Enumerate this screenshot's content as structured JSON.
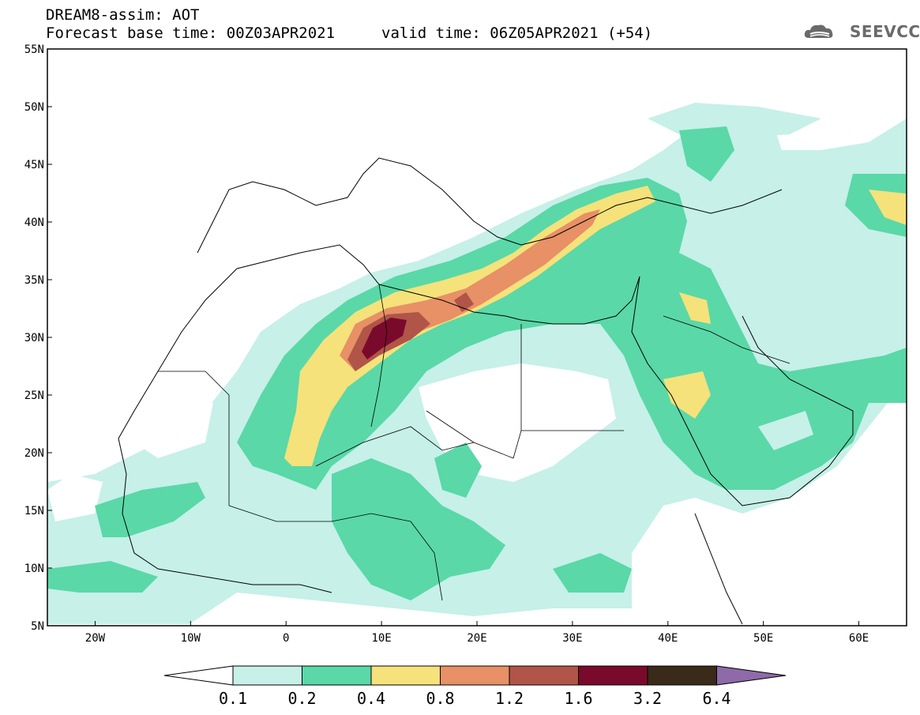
{
  "header": {
    "title": "DREAM8-assim: AOT",
    "base_time": "Forecast base time: 00Z03APR2021",
    "valid_time": "valid time: 06Z05APR2021 (+54)"
  },
  "logo": {
    "text": "SEEVCCC",
    "icon": "cloud-logo-icon"
  },
  "map": {
    "lat_labels": [
      "55N",
      "50N",
      "45N",
      "40N",
      "35N",
      "30N",
      "25N",
      "20N",
      "15N",
      "10N",
      "5N"
    ],
    "lon_labels": [
      "20W",
      "10W",
      "0",
      "10E",
      "20E",
      "30E",
      "40E",
      "50E",
      "60E"
    ],
    "lat_range": [
      5,
      55
    ],
    "lon_range": [
      -25,
      65
    ]
  },
  "colorbar": {
    "labels": [
      "0.1",
      "0.2",
      "0.4",
      "0.8",
      "1.2",
      "1.6",
      "3.2",
      "6.4"
    ],
    "colors": [
      "#ffffff",
      "#c6f0e8",
      "#5ad8a8",
      "#f5e27a",
      "#e89066",
      "#b05548",
      "#7a0a2c",
      "#3a2a1a",
      "#8e6aa8"
    ]
  }
}
